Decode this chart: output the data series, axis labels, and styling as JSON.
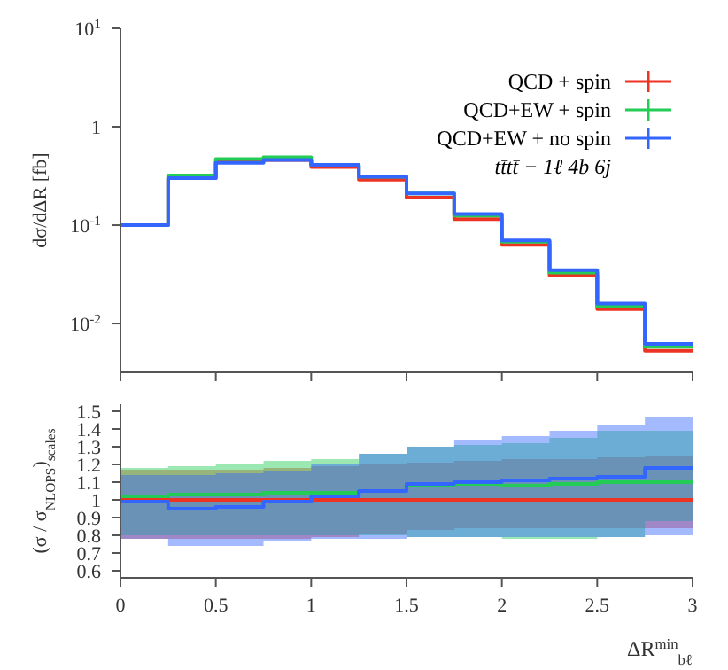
{
  "chart_data": [
    {
      "type": "histogram",
      "ylabel": "dσ/dΔR [fb]",
      "bins": [
        0,
        0.25,
        0.5,
        0.75,
        1,
        1.25,
        1.5,
        1.75,
        2,
        2.25,
        2.5,
        2.75,
        3
      ],
      "log": "y",
      "xlim": [
        0,
        3
      ],
      "xticks": [
        {
          "value": 0,
          "label": null
        },
        {
          "value": 0.5,
          "label": null
        },
        {
          "value": 1,
          "label": null
        },
        {
          "value": 1.5,
          "label": null
        },
        {
          "value": 2,
          "label": null
        },
        {
          "value": 2.5,
          "label": null
        },
        {
          "value": 3,
          "label": null
        }
      ],
      "ylim": [
        0.0032,
        10
      ],
      "yticks": [
        {
          "value": 0.01,
          "label": "10$^{-2}$"
        },
        {
          "value": 0.1,
          "label": "10$^{-1}$"
        },
        1,
        {
          "value": 10,
          "label": "10$^{1}$"
        }
      ],
      "tick_labels": "y",
      "legend": "top right",
      "marker": "cross",
      "annotations": [
        "tt̄tt̄ − 1ℓ 4b 6j"
      ],
      "series": [
        {
          "name": "QCD + spin",
          "color": "#ee3322",
          "values": [
            0.1,
            0.3,
            0.44,
            0.46,
            0.39,
            0.29,
            0.19,
            0.115,
            0.063,
            0.031,
            0.014,
            0.0053
          ]
        },
        {
          "name": "QCD+EW + spin",
          "color": "#22cc55",
          "values": [
            0.1,
            0.32,
            0.47,
            0.49,
            0.41,
            0.31,
            0.21,
            0.125,
            0.068,
            0.033,
            0.015,
            0.0058
          ]
        },
        {
          "name": "QCD+EW + no spin",
          "color": "#3366ff",
          "values": [
            0.1,
            0.3,
            0.43,
            0.46,
            0.41,
            0.31,
            0.21,
            0.13,
            0.07,
            0.035,
            0.016,
            0.0062
          ]
        }
      ]
    },
    {
      "type": "step",
      "ylabel": "(σ / σ$_{NLOPS}$)$_{scales}$",
      "xlabel": "ΔR$^{min}$$_{bℓ}$",
      "x": [
        0,
        0.25,
        0.5,
        0.75,
        1,
        1.25,
        1.5,
        1.75,
        2,
        2.25,
        2.5,
        2.75,
        3
      ],
      "xlim": [
        0,
        3
      ],
      "xticks": [
        0,
        0.5,
        1,
        1.5,
        2,
        2.5,
        3
      ],
      "ylim": [
        0.56,
        1.54
      ],
      "yticks": [
        0.6,
        0.7,
        0.8,
        0.9,
        1,
        1.1,
        1.2,
        1.3,
        1.4,
        1.5
      ],
      "series": [
        {
          "color": "#ee3322",
          "values": [
            1,
            1,
            1,
            1,
            1,
            1,
            1,
            1,
            1,
            1,
            1,
            1,
            1
          ],
          "lower": [
            0.78,
            0.78,
            0.78,
            0.78,
            0.79,
            0.81,
            0.83,
            0.84,
            0.84,
            0.84,
            0.84,
            0.84,
            0.84
          ],
          "upper": [
            1.17,
            1.17,
            1.17,
            1.18,
            1.19,
            1.2,
            1.21,
            1.22,
            1.23,
            1.23,
            1.24,
            1.25,
            1.25
          ]
        },
        {
          "color": "#22cc55",
          "values": [
            1.02,
            1.03,
            1.03,
            1.04,
            1.04,
            1.05,
            1.08,
            1.09,
            1.08,
            1.09,
            1.1,
            1.1,
            1.1
          ],
          "lower": [
            0.8,
            0.8,
            0.8,
            0.8,
            0.8,
            0.8,
            0.79,
            0.79,
            0.78,
            0.78,
            0.79,
            0.88,
            0.88
          ],
          "upper": [
            1.18,
            1.19,
            1.2,
            1.22,
            1.23,
            1.26,
            1.3,
            1.31,
            1.32,
            1.35,
            1.39,
            1.39,
            1.39
          ]
        },
        {
          "color": "#3366ff",
          "values": [
            0.99,
            0.95,
            0.96,
            0.99,
            1.02,
            1.05,
            1.09,
            1.1,
            1.11,
            1.12,
            1.13,
            1.18,
            1.18
          ],
          "lower": [
            0.78,
            0.74,
            0.74,
            0.77,
            0.78,
            0.78,
            0.79,
            0.79,
            0.79,
            0.79,
            0.79,
            0.8,
            0.8
          ],
          "upper": [
            1.14,
            1.14,
            1.15,
            1.16,
            1.2,
            1.26,
            1.3,
            1.34,
            1.36,
            1.39,
            1.42,
            1.47,
            1.47
          ]
        }
      ]
    }
  ]
}
